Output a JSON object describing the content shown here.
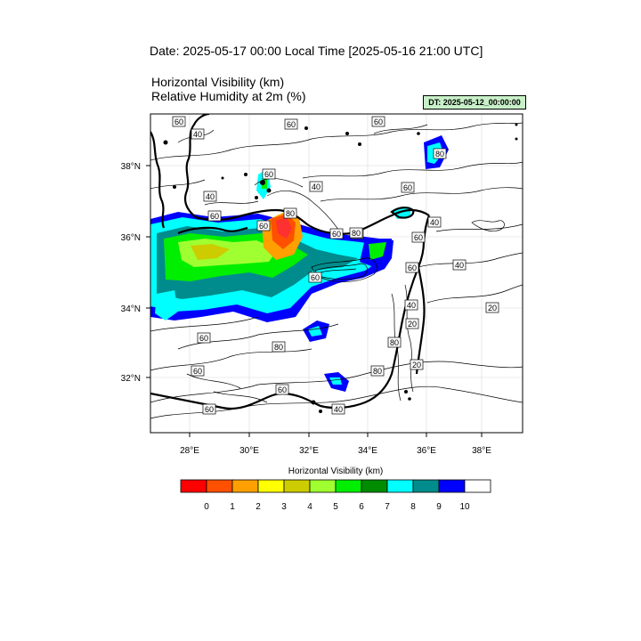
{
  "header": {
    "date_title": "Date: 2025-05-17  00:00 Local Time [2025-05-16  21:00 UTC]",
    "title_line1": "Horizontal Visibility   (km)",
    "title_line2": "Relative Humidity at 2m   (%)",
    "dt_badge": "DT: 2025-05-12_00:00:00"
  },
  "map": {
    "lon_ticks": [
      "28°E",
      "30°E",
      "32°E",
      "34°E",
      "36°E",
      "38°E"
    ],
    "lat_ticks": [
      "38°N",
      "36°N",
      "34°N",
      "32°N"
    ],
    "contour_labels": [
      {
        "text": "60"
      },
      {
        "text": "40"
      },
      {
        "text": "60"
      },
      {
        "text": "60"
      },
      {
        "text": "80"
      },
      {
        "text": "40"
      },
      {
        "text": "60"
      },
      {
        "text": "40"
      },
      {
        "text": "60"
      },
      {
        "text": "60"
      },
      {
        "text": "80"
      },
      {
        "text": "60"
      },
      {
        "text": "60"
      },
      {
        "text": "80"
      },
      {
        "text": "60"
      },
      {
        "text": "40"
      },
      {
        "text": "60"
      },
      {
        "text": "40"
      },
      {
        "text": "60"
      },
      {
        "text": "80"
      },
      {
        "text": "40"
      },
      {
        "text": "20"
      },
      {
        "text": "20"
      },
      {
        "text": "80"
      },
      {
        "text": "60"
      },
      {
        "text": "80"
      },
      {
        "text": "60"
      },
      {
        "text": "20"
      },
      {
        "text": "80"
      },
      {
        "text": "60"
      },
      {
        "text": "60"
      },
      {
        "text": "40"
      }
    ]
  },
  "colorbar": {
    "title": "Horizontal Visibility  (km)",
    "colors": [
      "#ff0000",
      "#ff5000",
      "#ffa000",
      "#ffff00",
      "#cccc00",
      "#a0ff30",
      "#00ee00",
      "#008c00",
      "#00ffff",
      "#008c8c",
      "#0000ff",
      "#ffffff"
    ],
    "labels": [
      "0",
      "1",
      "2",
      "3",
      "4",
      "5",
      "6",
      "7",
      "8",
      "9",
      "10"
    ]
  }
}
